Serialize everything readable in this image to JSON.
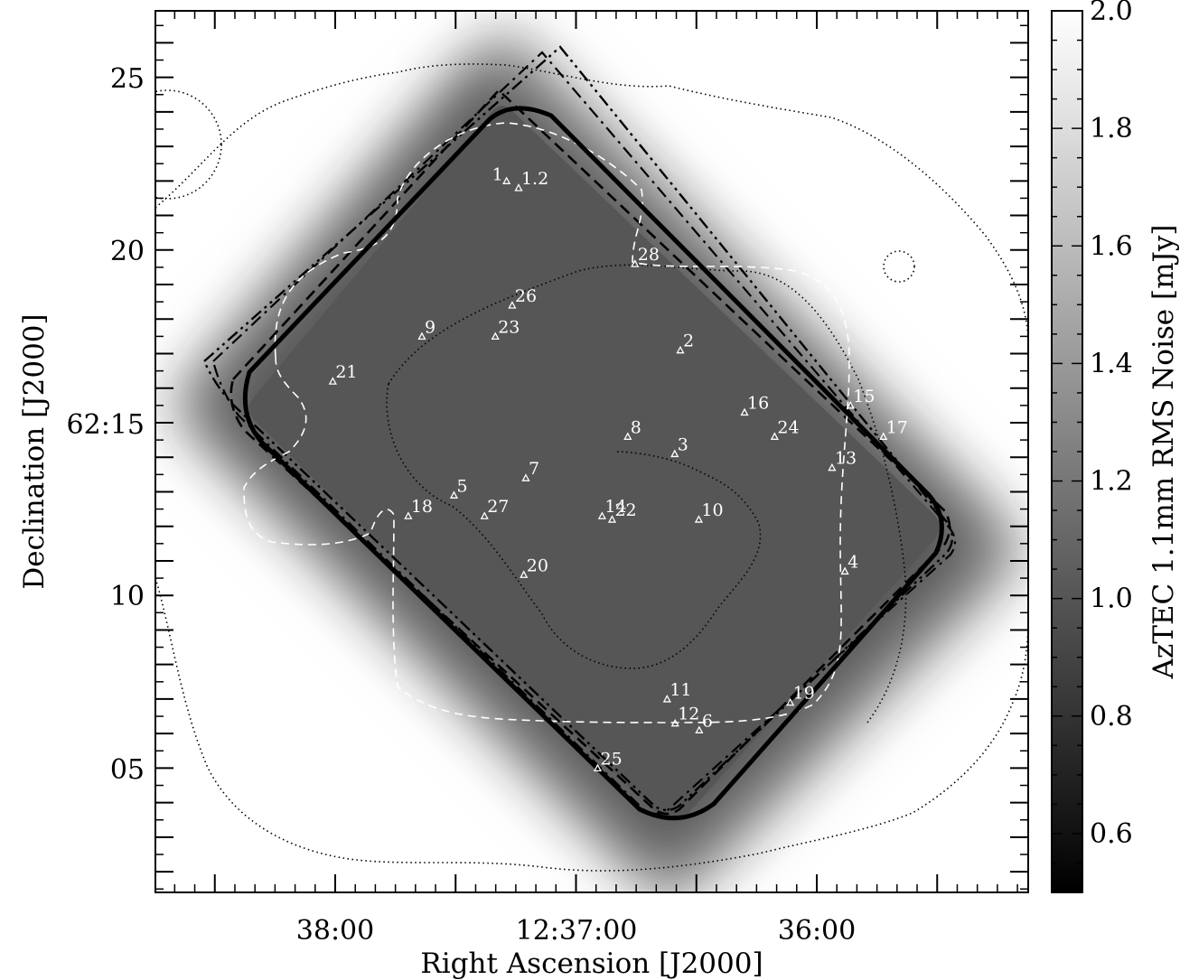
{
  "chart_data": {
    "type": "scatter",
    "xlabel": "Right Ascension [J2000]",
    "ylabel": "Declination [J2000]",
    "colorbar_label": "AzTEC 1.1mm RMS Noise [mJy]",
    "x_ticks": [
      "38:00",
      "12:37:00",
      "36:00"
    ],
    "y_ticks": [
      "62:15",
      "20",
      "25",
      "10",
      "05"
    ],
    "colorbar_ticks": [
      "2.0",
      "1.8",
      "1.6",
      "1.4",
      "1.2",
      "1.0",
      "0.8",
      "0.6"
    ],
    "colorbar_range": [
      0.5,
      2.0
    ],
    "colormap": "grayscale (black = low noise, white = high noise)",
    "sources": [
      {
        "id": "1",
        "ra": "12:37:17.3",
        "dec": "62:22.0"
      },
      {
        "id": "1.2",
        "ra": "12:37:14.3",
        "dec": "62:21.8"
      },
      {
        "id": "2",
        "ra": "12:36:34.0",
        "dec": "62:17.1"
      },
      {
        "id": "3",
        "ra": "12:36:35.4",
        "dec": "62:14.1"
      },
      {
        "id": "4",
        "ra": "12:35:53.0",
        "dec": "62:10.7"
      },
      {
        "id": "5",
        "ra": "12:37:30.4",
        "dec": "62:12.9"
      },
      {
        "id": "6",
        "ra": "12:36:29.3",
        "dec": "62:06.1"
      },
      {
        "id": "7",
        "ra": "12:37:12.5",
        "dec": "62:13.4"
      },
      {
        "id": "8",
        "ra": "12:36:47.1",
        "dec": "62:14.6"
      },
      {
        "id": "9",
        "ra": "12:37:38.4",
        "dec": "62:17.5"
      },
      {
        "id": "10",
        "ra": "12:36:29.4",
        "dec": "62:12.2"
      },
      {
        "id": "11",
        "ra": "12:36:37.3",
        "dec": "62:07.0"
      },
      {
        "id": "12",
        "ra": "12:36:35.3",
        "dec": "62:06.3"
      },
      {
        "id": "13",
        "ra": "12:35:56.2",
        "dec": "62:13.7"
      },
      {
        "id": "14",
        "ra": "12:36:53.5",
        "dec": "62:12.3"
      },
      {
        "id": "15",
        "ra": "12:35:51.6",
        "dec": "62:15.5"
      },
      {
        "id": "16",
        "ra": "12:36:18.0",
        "dec": "62:15.3"
      },
      {
        "id": "17",
        "ra": "12:35:43.4",
        "dec": "62:14.6"
      },
      {
        "id": "18",
        "ra": "12:37:41.8",
        "dec": "62:12.3"
      },
      {
        "id": "19",
        "ra": "12:36:06.6",
        "dec": "62:06.9"
      },
      {
        "id": "20",
        "ra": "12:37:13.0",
        "dec": "62:10.6"
      },
      {
        "id": "21",
        "ra": "12:38:00.6",
        "dec": "62:16.2"
      },
      {
        "id": "22",
        "ra": "12:36:51.0",
        "dec": "62:12.2"
      },
      {
        "id": "23",
        "ra": "12:37:20.1",
        "dec": "62:17.5"
      },
      {
        "id": "24",
        "ra": "12:36:10.5",
        "dec": "62:14.6"
      },
      {
        "id": "25",
        "ra": "12:36:54.6",
        "dec": "62:05.0"
      },
      {
        "id": "26",
        "ra": "12:37:15.9",
        "dec": "62:18.4"
      },
      {
        "id": "27",
        "ra": "12:37:22.8",
        "dec": "62:12.3"
      },
      {
        "id": "28",
        "ra": "12:36:45.3",
        "dec": "62:19.6"
      }
    ],
    "contours": [
      {
        "style": "solid",
        "weight": "heavy"
      },
      {
        "style": "dashed",
        "color": "black"
      },
      {
        "style": "dash-dot",
        "color": "black"
      },
      {
        "style": "dash-dot-dot",
        "color": "black"
      },
      {
        "style": "dashed",
        "color": "white"
      },
      {
        "style": "dotted",
        "color": "black"
      }
    ]
  }
}
